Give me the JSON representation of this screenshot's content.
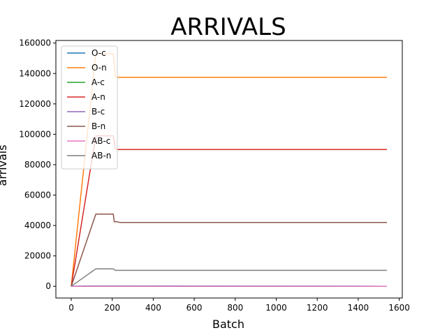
{
  "chart_data": {
    "type": "line",
    "title": "ARRIVALS",
    "xlabel": "Batch",
    "ylabel": "arrivals",
    "xlim": [
      -75,
      1615
    ],
    "ylim": [
      -7700,
      161700
    ],
    "xticks": [
      0,
      200,
      400,
      600,
      800,
      1000,
      1200,
      1400,
      1600
    ],
    "xtick_labels": [
      "0",
      "200",
      "400",
      "600",
      "800",
      "1000",
      "1200",
      "1400",
      "1600"
    ],
    "yticks": [
      0,
      20000,
      40000,
      60000,
      80000,
      100000,
      120000,
      140000,
      160000
    ],
    "ytick_labels": [
      "0",
      "20000",
      "40000",
      "60000",
      "80000",
      "100000",
      "120000",
      "140000",
      "160000"
    ],
    "grid": false,
    "legend_position": "upper-left",
    "series": [
      {
        "name": "O-c",
        "color": "#1f77b4",
        "x": [
          0,
          120,
          1540
        ],
        "y": [
          0,
          200,
          0
        ]
      },
      {
        "name": "O-n",
        "color": "#ff7f0e",
        "x": [
          0,
          120,
          205,
          215,
          220,
          1540
        ],
        "y": [
          0,
          153000,
          153000,
          138000,
          137500,
          137500
        ]
      },
      {
        "name": "A-c",
        "color": "#2ca02c",
        "x": [
          0,
          120,
          1540
        ],
        "y": [
          0,
          150,
          0
        ]
      },
      {
        "name": "A-n",
        "color": "#d62728",
        "x": [
          0,
          120,
          205,
          215,
          220,
          1540
        ],
        "y": [
          0,
          99000,
          99000,
          90500,
          90000,
          90000
        ]
      },
      {
        "name": "B-c",
        "color": "#9467bd",
        "x": [
          0,
          120,
          1540
        ],
        "y": [
          0,
          100,
          0
        ]
      },
      {
        "name": "B-n",
        "color": "#8c564b",
        "x": [
          0,
          120,
          205,
          210,
          225,
          235,
          1540
        ],
        "y": [
          0,
          47500,
          47500,
          42500,
          42500,
          42000,
          42000
        ]
      },
      {
        "name": "AB-c",
        "color": "#e377c2",
        "x": [
          0,
          120,
          1540
        ],
        "y": [
          0,
          50,
          0
        ]
      },
      {
        "name": "AB-n",
        "color": "#7f7f7f",
        "x": [
          0,
          120,
          205,
          215,
          1540
        ],
        "y": [
          0,
          11500,
          11500,
          10500,
          10500
        ]
      }
    ]
  }
}
